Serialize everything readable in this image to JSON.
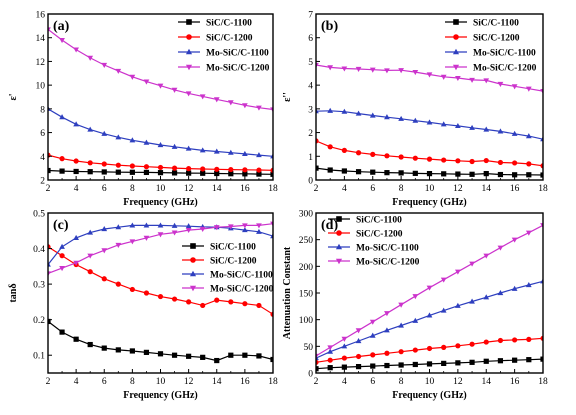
{
  "chart_data": [
    {
      "panel": "(a)",
      "type": "line",
      "xlabel": "Frequency (GHz)",
      "ylabel": "ε'",
      "xlim": [
        2,
        18
      ],
      "ylim": [
        2,
        16
      ],
      "xticks": [
        2,
        4,
        6,
        8,
        10,
        12,
        14,
        16,
        18
      ],
      "yticks": [
        2,
        4,
        6,
        8,
        10,
        12,
        14,
        16
      ],
      "legend": "top-right",
      "series": [
        {
          "name": "SiC/C-1100",
          "color": "#000000",
          "marker": "square",
          "x": [
            2,
            3,
            4,
            5,
            6,
            7,
            8,
            9,
            10,
            11,
            12,
            13,
            14,
            15,
            16,
            17,
            18
          ],
          "y": [
            2.8,
            2.75,
            2.72,
            2.7,
            2.68,
            2.66,
            2.65,
            2.64,
            2.62,
            2.6,
            2.58,
            2.57,
            2.55,
            2.53,
            2.52,
            2.5,
            2.48
          ]
        },
        {
          "name": "SiC/C-1200",
          "color": "#ff0000",
          "marker": "circle",
          "x": [
            2,
            3,
            4,
            5,
            6,
            7,
            8,
            9,
            10,
            11,
            12,
            13,
            14,
            15,
            16,
            17,
            18
          ],
          "y": [
            4.1,
            3.8,
            3.6,
            3.45,
            3.35,
            3.25,
            3.18,
            3.12,
            3.06,
            3.0,
            2.96,
            2.93,
            2.9,
            2.88,
            2.86,
            2.84,
            2.82
          ]
        },
        {
          "name": "Mo-SiC/C-1100",
          "color": "#2e3fbf",
          "marker": "triangle",
          "x": [
            2,
            3,
            4,
            5,
            6,
            7,
            8,
            9,
            10,
            11,
            12,
            13,
            14,
            15,
            16,
            17,
            18
          ],
          "y": [
            8.0,
            7.3,
            6.7,
            6.25,
            5.9,
            5.6,
            5.35,
            5.15,
            4.95,
            4.8,
            4.65,
            4.5,
            4.4,
            4.3,
            4.2,
            4.1,
            4.0
          ]
        },
        {
          "name": "Mo-SiC/C-1200",
          "color": "#cc33cc",
          "marker": "triangle-down",
          "x": [
            2,
            3,
            4,
            5,
            6,
            7,
            8,
            9,
            10,
            11,
            12,
            13,
            14,
            15,
            16,
            17,
            18
          ],
          "y": [
            14.7,
            13.8,
            13.0,
            12.3,
            11.7,
            11.2,
            10.7,
            10.3,
            9.95,
            9.6,
            9.3,
            9.05,
            8.8,
            8.55,
            8.3,
            8.1,
            7.95
          ]
        }
      ]
    },
    {
      "panel": "(b)",
      "type": "line",
      "xlabel": "Frequency (GHz)",
      "ylabel": "ε''",
      "xlim": [
        2,
        18
      ],
      "ylim": [
        0,
        7
      ],
      "xticks": [
        2,
        4,
        6,
        8,
        10,
        12,
        14,
        16,
        18
      ],
      "yticks": [
        0,
        1,
        2,
        3,
        4,
        5,
        6,
        7
      ],
      "legend": "top-right",
      "series": [
        {
          "name": "SiC/C-1100",
          "color": "#000000",
          "marker": "square",
          "x": [
            2,
            3,
            4,
            5,
            6,
            7,
            8,
            9,
            10,
            11,
            12,
            13,
            14,
            15,
            16,
            17,
            18
          ],
          "y": [
            0.5,
            0.42,
            0.38,
            0.35,
            0.33,
            0.31,
            0.3,
            0.28,
            0.27,
            0.26,
            0.25,
            0.24,
            0.27,
            0.23,
            0.22,
            0.22,
            0.21
          ]
        },
        {
          "name": "SiC/C-1200",
          "color": "#ff0000",
          "marker": "circle",
          "x": [
            2,
            3,
            4,
            5,
            6,
            7,
            8,
            9,
            10,
            11,
            12,
            13,
            14,
            15,
            16,
            17,
            18
          ],
          "y": [
            1.65,
            1.4,
            1.25,
            1.15,
            1.08,
            1.02,
            0.97,
            0.92,
            0.88,
            0.84,
            0.81,
            0.78,
            0.82,
            0.74,
            0.72,
            0.68,
            0.6
          ]
        },
        {
          "name": "Mo-SiC/C-1100",
          "color": "#2e3fbf",
          "marker": "triangle",
          "x": [
            2,
            3,
            4,
            5,
            6,
            7,
            8,
            9,
            10,
            11,
            12,
            13,
            14,
            15,
            16,
            17,
            18
          ],
          "y": [
            2.9,
            2.92,
            2.88,
            2.8,
            2.72,
            2.65,
            2.58,
            2.5,
            2.43,
            2.35,
            2.28,
            2.2,
            2.13,
            2.05,
            1.95,
            1.85,
            1.72
          ]
        },
        {
          "name": "Mo-SiC/C-1200",
          "color": "#cc33cc",
          "marker": "triangle-down",
          "x": [
            2,
            3,
            4,
            5,
            6,
            7,
            8,
            9,
            10,
            11,
            12,
            13,
            14,
            15,
            16,
            17,
            18
          ],
          "y": [
            4.85,
            4.75,
            4.7,
            4.68,
            4.65,
            4.62,
            4.63,
            4.55,
            4.45,
            4.35,
            4.3,
            4.22,
            4.2,
            4.05,
            3.95,
            3.85,
            3.75
          ]
        }
      ]
    },
    {
      "panel": "(c)",
      "type": "line",
      "xlabel": "Frequency (GHz)",
      "ylabel": "tanδ",
      "xlim": [
        2,
        18
      ],
      "ylim": [
        0.05,
        0.5
      ],
      "xticks": [
        2,
        4,
        6,
        8,
        10,
        12,
        14,
        16,
        18
      ],
      "yticks": [
        0.1,
        0.2,
        0.3,
        0.4,
        0.5
      ],
      "legend": "right",
      "series": [
        {
          "name": "SiC/C-1100",
          "color": "#000000",
          "marker": "square",
          "x": [
            2,
            3,
            4,
            5,
            6,
            7,
            8,
            9,
            10,
            11,
            12,
            13,
            14,
            15,
            16,
            17,
            18
          ],
          "y": [
            0.195,
            0.165,
            0.145,
            0.13,
            0.12,
            0.115,
            0.112,
            0.108,
            0.104,
            0.1,
            0.097,
            0.094,
            0.085,
            0.1,
            0.1,
            0.098,
            0.088
          ]
        },
        {
          "name": "SiC/C-1200",
          "color": "#ff0000",
          "marker": "circle",
          "x": [
            2,
            3,
            4,
            5,
            6,
            7,
            8,
            9,
            10,
            11,
            12,
            13,
            14,
            15,
            16,
            17,
            18
          ],
          "y": [
            0.405,
            0.38,
            0.355,
            0.335,
            0.315,
            0.3,
            0.285,
            0.275,
            0.265,
            0.258,
            0.25,
            0.24,
            0.255,
            0.25,
            0.245,
            0.24,
            0.215
          ]
        },
        {
          "name": "Mo-SiC/C-1100",
          "color": "#2e3fbf",
          "marker": "triangle",
          "x": [
            2,
            3,
            4,
            5,
            6,
            7,
            8,
            9,
            10,
            11,
            12,
            13,
            14,
            15,
            16,
            17,
            18
          ],
          "y": [
            0.355,
            0.405,
            0.43,
            0.445,
            0.455,
            0.46,
            0.465,
            0.465,
            0.465,
            0.464,
            0.463,
            0.461,
            0.46,
            0.457,
            0.452,
            0.447,
            0.435
          ]
        },
        {
          "name": "Mo-SiC/C-1200",
          "color": "#cc33cc",
          "marker": "triangle-down",
          "x": [
            2,
            3,
            4,
            5,
            6,
            7,
            8,
            9,
            10,
            11,
            12,
            13,
            14,
            15,
            16,
            17,
            18
          ],
          "y": [
            0.33,
            0.345,
            0.36,
            0.38,
            0.395,
            0.41,
            0.42,
            0.43,
            0.44,
            0.445,
            0.452,
            0.455,
            0.46,
            0.462,
            0.465,
            0.465,
            0.47
          ]
        }
      ]
    },
    {
      "panel": "(d)",
      "type": "line",
      "xlabel": "Frequency (GHz)",
      "ylabel": "Attenuation Constant",
      "xlim": [
        2,
        18
      ],
      "ylim": [
        0,
        300
      ],
      "xticks": [
        2,
        4,
        6,
        8,
        10,
        12,
        14,
        16,
        18
      ],
      "yticks": [
        0,
        50,
        100,
        150,
        200,
        250,
        300
      ],
      "legend": "top-left",
      "series": [
        {
          "name": "SiC/C-1100",
          "color": "#000000",
          "marker": "square",
          "x": [
            2,
            3,
            4,
            5,
            6,
            7,
            8,
            9,
            10,
            11,
            12,
            13,
            14,
            15,
            16,
            17,
            18
          ],
          "y": [
            8,
            10,
            11,
            12,
            13,
            14,
            15,
            16,
            17,
            18,
            19,
            20,
            22,
            23,
            24,
            25,
            26
          ]
        },
        {
          "name": "SiC/C-1200",
          "color": "#ff0000",
          "marker": "circle",
          "x": [
            2,
            3,
            4,
            5,
            6,
            7,
            8,
            9,
            10,
            11,
            12,
            13,
            14,
            15,
            16,
            17,
            18
          ],
          "y": [
            20,
            24,
            28,
            31,
            34,
            37,
            40,
            43,
            46,
            48,
            51,
            54,
            58,
            61,
            62,
            63,
            65
          ]
        },
        {
          "name": "Mo-SiC/C-1100",
          "color": "#2e3fbf",
          "marker": "triangle",
          "x": [
            2,
            3,
            4,
            5,
            6,
            7,
            8,
            9,
            10,
            11,
            12,
            13,
            14,
            15,
            16,
            17,
            18
          ],
          "y": [
            28,
            40,
            50,
            60,
            70,
            80,
            89,
            98,
            108,
            117,
            126,
            134,
            142,
            150,
            158,
            165,
            172
          ]
        },
        {
          "name": "Mo-SiC/C-1200",
          "color": "#cc33cc",
          "marker": "triangle-down",
          "x": [
            2,
            3,
            4,
            5,
            6,
            7,
            8,
            9,
            10,
            11,
            12,
            13,
            14,
            15,
            16,
            17,
            18
          ],
          "y": [
            32,
            48,
            64,
            80,
            96,
            112,
            128,
            144,
            160,
            175,
            190,
            205,
            220,
            235,
            250,
            263,
            277
          ]
        }
      ]
    }
  ]
}
